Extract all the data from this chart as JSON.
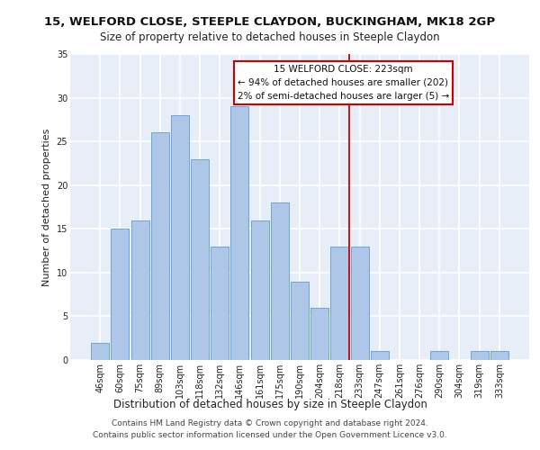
{
  "title": "15, WELFORD CLOSE, STEEPLE CLAYDON, BUCKINGHAM, MK18 2GP",
  "subtitle": "Size of property relative to detached houses in Steeple Claydon",
  "xlabel": "Distribution of detached houses by size in Steeple Claydon",
  "ylabel": "Number of detached properties",
  "categories": [
    "46sqm",
    "60sqm",
    "75sqm",
    "89sqm",
    "103sqm",
    "118sqm",
    "132sqm",
    "146sqm",
    "161sqm",
    "175sqm",
    "190sqm",
    "204sqm",
    "218sqm",
    "233sqm",
    "247sqm",
    "261sqm",
    "276sqm",
    "290sqm",
    "304sqm",
    "319sqm",
    "333sqm"
  ],
  "values": [
    2,
    15,
    16,
    26,
    28,
    23,
    13,
    29,
    16,
    18,
    9,
    6,
    13,
    13,
    1,
    0,
    0,
    1,
    0,
    1,
    1
  ],
  "bar_color": "#aec6e8",
  "bar_edge_color": "#5a9fd4",
  "annotation_text": "15 WELFORD CLOSE: 223sqm\n← 94% of detached houses are smaller (202)\n2% of semi-detached houses are larger (5) →",
  "annotation_box_color": "#cc0000",
  "ylim": [
    0,
    35
  ],
  "yticks": [
    0,
    5,
    10,
    15,
    20,
    25,
    30,
    35
  ],
  "background_color": "#e8eef8",
  "grid_color": "#ffffff",
  "footer": "Contains HM Land Registry data © Crown copyright and database right 2024.\nContains public sector information licensed under the Open Government Licence v3.0.",
  "title_fontsize": 9.5,
  "subtitle_fontsize": 8.5,
  "xlabel_fontsize": 8.5,
  "ylabel_fontsize": 8,
  "tick_fontsize": 7,
  "annotation_fontsize": 7.5,
  "footer_fontsize": 6.5
}
